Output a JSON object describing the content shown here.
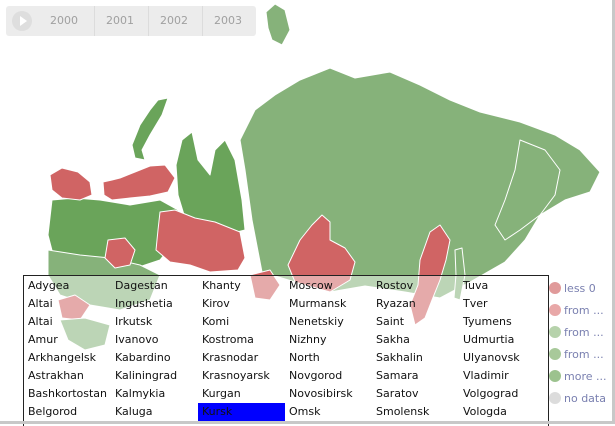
{
  "colors": {
    "dark_green": "#6aa45a",
    "light_green": "#86b27a",
    "red": "#d06464",
    "light_red": "#e8a0a0",
    "no_data": "#d9d9d9",
    "selected": "#0000ff"
  },
  "legend": [
    {
      "label": "less 0",
      "color": "#e09a9a"
    },
    {
      "label": "from ...",
      "color": "#e8a8a8"
    },
    {
      "label": "from ...",
      "color": "#b6d2ab"
    },
    {
      "label": "from ...",
      "color": "#a8c99a"
    },
    {
      "label": "more ...",
      "color": "#9cc28e"
    },
    {
      "label": "no data",
      "color": "#dcdcdc"
    }
  ],
  "timeline": {
    "ticks": [
      "2000",
      "2001",
      "2002",
      "2003"
    ]
  },
  "regions": [
    "Adygea",
    "Altai",
    "Altai",
    "Amur",
    "Arkhangelsk",
    "Astrakhan",
    "Bashkortostan",
    "Belgorod",
    "Dagestan",
    "Ingushetia",
    "Irkutsk",
    "Ivanovo",
    "Kabardino",
    "Kaliningrad",
    "Kalmykia",
    "Kaluga",
    "Khanty",
    "Kirov",
    "Komi",
    "Kostroma",
    "Krasnodar",
    "Krasnoyarsk",
    "Kurgan",
    "Kursk",
    "Moscow",
    "Murmansk",
    "Nenetskiy",
    "Nizhny",
    "North",
    "Novgorod",
    "Novosibirsk",
    "Omsk",
    "Rostov",
    "Ryazan",
    "Saint",
    "Sakha",
    "Sakhalin",
    "Samara",
    "Saratov",
    "Smolensk",
    "Tuva",
    "Tver",
    "Tyumens",
    "Udmurtia",
    "Ulyanovsk",
    "Vladimir",
    "Volgograd",
    "Vologda"
  ],
  "selected_region": "Kursk"
}
